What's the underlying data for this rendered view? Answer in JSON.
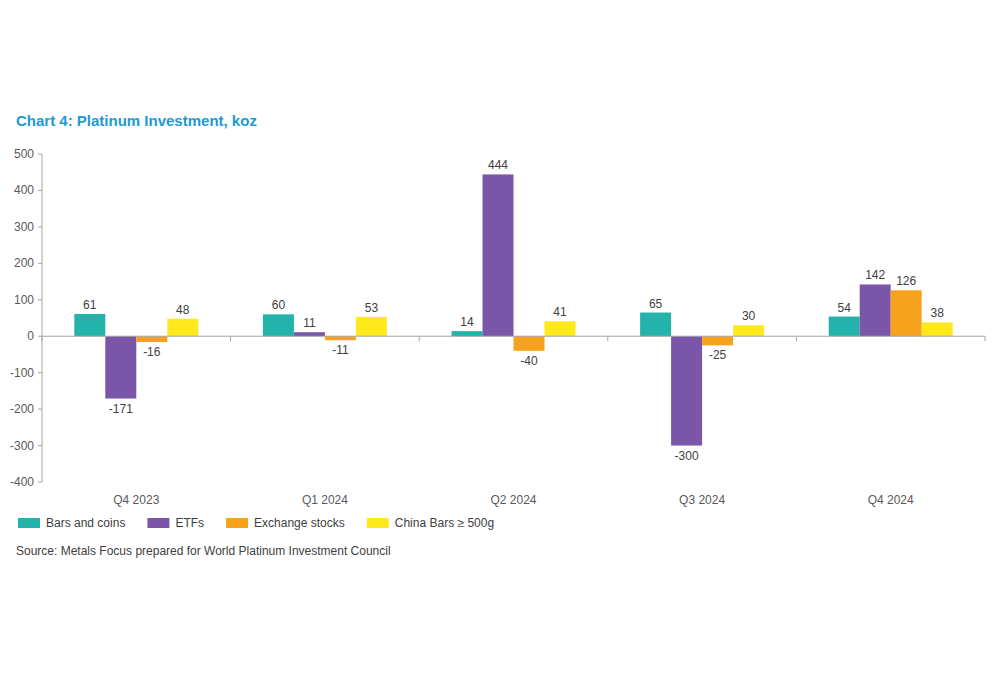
{
  "chart_data": {
    "type": "bar",
    "title": "Chart 4: Platinum Investment, koz",
    "categories": [
      "Q4 2023",
      "Q1 2024",
      "Q2 2024",
      "Q3 2024",
      "Q4 2024"
    ],
    "series": [
      {
        "name": "Bars and coins",
        "color": "#23b3aa",
        "values": [
          61,
          60,
          14,
          65,
          54
        ]
      },
      {
        "name": "ETFs",
        "color": "#7b56a8",
        "values": [
          -171,
          11,
          444,
          -300,
          142
        ]
      },
      {
        "name": "Exchange stocks",
        "color": "#f6a21d",
        "values": [
          -16,
          -11,
          -40,
          -25,
          126
        ]
      },
      {
        "name": "China Bars ≥ 500g",
        "color": "#ffe81c",
        "values": [
          48,
          53,
          41,
          30,
          38
        ]
      }
    ],
    "ylim": [
      -400,
      500
    ],
    "yticks": [
      -400,
      -300,
      -200,
      -100,
      0,
      100,
      200,
      300,
      400,
      500
    ],
    "grid": false,
    "data_labels": true,
    "legend": "bottom",
    "annotations": [
      "Source: Metals Focus prepared for World Platinum Investment Council"
    ]
  }
}
